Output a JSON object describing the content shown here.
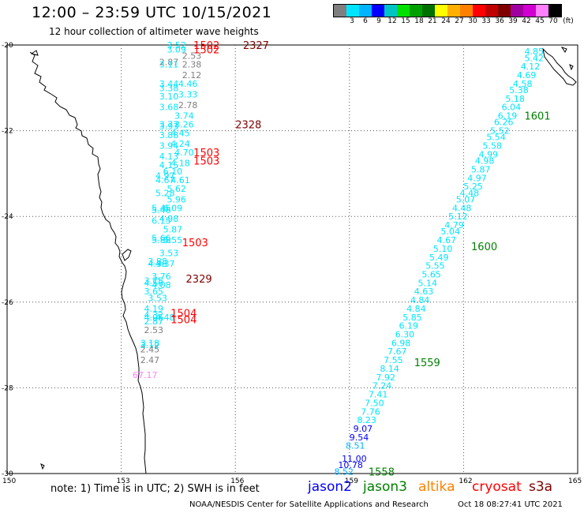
{
  "header": {
    "title": "12:00 – 23:59 UTC 10/15/2021",
    "subtitle": "12 hour collection of altimeter wave heights"
  },
  "legend": {
    "unit": "(ft)",
    "colors": [
      "#7f7f7f",
      "#00e5ff",
      "#00b4ff",
      "#0000ff",
      "#00c4c4",
      "#00e000",
      "#00a000",
      "#007000",
      "#ffff00",
      "#ffb000",
      "#ff8000",
      "#ff0000",
      "#c00000",
      "#800000",
      "#a000a0",
      "#d000d0",
      "#ff80ff",
      "#000000"
    ],
    "ticks": [
      "3",
      "6",
      "9",
      "12",
      "15",
      "18",
      "21",
      "24",
      "27",
      "30",
      "33",
      "36",
      "39",
      "42",
      "45",
      "70"
    ]
  },
  "map": {
    "lat_labels": [
      "-20",
      "-22",
      "-24",
      "-26",
      "-28",
      "-30"
    ],
    "lon_labels": [
      "150",
      "153",
      "156",
      "159",
      "162",
      "165"
    ]
  },
  "chart_data": {
    "type": "scatter",
    "x_range": [
      150,
      165
    ],
    "y_range": [
      -30,
      -20
    ],
    "grid": true,
    "units": "ft",
    "track_labels": [
      {
        "text": "2327",
        "lon": 156.2,
        "lat": -20.0,
        "color": "#800000"
      },
      {
        "text": "1502",
        "lon": 154.9,
        "lat": -20.0,
        "color": "#ff0000"
      },
      {
        "text": "1502",
        "lon": 154.9,
        "lat": -20.1,
        "color": "#ff0000"
      },
      {
        "text": "2328",
        "lon": 156.0,
        "lat": -21.85,
        "color": "#800000"
      },
      {
        "text": "1503",
        "lon": 154.9,
        "lat": -22.5,
        "color": "#ff0000"
      },
      {
        "text": "1503",
        "lon": 154.9,
        "lat": -22.7,
        "color": "#ff0000"
      },
      {
        "text": "1503",
        "lon": 154.6,
        "lat": -24.6,
        "color": "#ff0000"
      },
      {
        "text": "2329",
        "lon": 154.7,
        "lat": -25.45,
        "color": "#800000"
      },
      {
        "text": "1504",
        "lon": 154.3,
        "lat": -26.25,
        "color": "#ff0000"
      },
      {
        "text": "1504",
        "lon": 154.3,
        "lat": -26.4,
        "color": "#ff0000"
      },
      {
        "text": "1601",
        "lon": 163.6,
        "lat": -21.65,
        "color": "#008000"
      },
      {
        "text": "1600",
        "lon": 162.2,
        "lat": -24.7,
        "color": "#008000"
      },
      {
        "text": "1559",
        "lon": 160.7,
        "lat": -27.4,
        "color": "#008000"
      },
      {
        "text": "1558",
        "lon": 159.5,
        "lat": -29.95,
        "color": "#008000"
      }
    ],
    "points": [
      {
        "lon": 163.6,
        "lat": -20.15,
        "v": "4.85",
        "c": "#00e5ff"
      },
      {
        "lon": 163.6,
        "lat": -20.3,
        "v": "5.42",
        "c": "#00e5ff"
      },
      {
        "lon": 163.5,
        "lat": -20.5,
        "v": "4.12",
        "c": "#00e5ff"
      },
      {
        "lon": 163.4,
        "lat": -20.7,
        "v": "4.69",
        "c": "#00e5ff"
      },
      {
        "lon": 163.3,
        "lat": -20.9,
        "v": "4.58",
        "c": "#00e5ff"
      },
      {
        "lon": 163.2,
        "lat": -21.05,
        "v": "5.38",
        "c": "#00e5ff"
      },
      {
        "lon": 163.1,
        "lat": -21.25,
        "v": "5.18",
        "c": "#00e5ff"
      },
      {
        "lon": 163.0,
        "lat": -21.45,
        "v": "6.04",
        "c": "#00e5ff"
      },
      {
        "lon": 162.9,
        "lat": -21.65,
        "v": "6.19",
        "c": "#00e5ff"
      },
      {
        "lon": 162.8,
        "lat": -21.8,
        "v": "6.26",
        "c": "#00e5ff"
      },
      {
        "lon": 162.7,
        "lat": -22.0,
        "v": "5.52",
        "c": "#00e5ff"
      },
      {
        "lon": 162.6,
        "lat": -22.15,
        "v": "5.54",
        "c": "#00e5ff"
      },
      {
        "lon": 162.5,
        "lat": -22.35,
        "v": "5.58",
        "c": "#00e5ff"
      },
      {
        "lon": 162.4,
        "lat": -22.55,
        "v": "4.99",
        "c": "#00e5ff"
      },
      {
        "lon": 162.3,
        "lat": -22.7,
        "v": "4.98",
        "c": "#00e5ff"
      },
      {
        "lon": 162.2,
        "lat": -22.9,
        "v": "5.87",
        "c": "#00e5ff"
      },
      {
        "lon": 162.1,
        "lat": -23.1,
        "v": "4.97",
        "c": "#00e5ff"
      },
      {
        "lon": 162.0,
        "lat": -23.3,
        "v": "5.25",
        "c": "#00e5ff"
      },
      {
        "lon": 161.9,
        "lat": -23.45,
        "v": "4.48",
        "c": "#00e5ff"
      },
      {
        "lon": 161.8,
        "lat": -23.6,
        "v": "5.07",
        "c": "#00e5ff"
      },
      {
        "lon": 161.7,
        "lat": -23.8,
        "v": "4.48",
        "c": "#00e5ff"
      },
      {
        "lon": 161.6,
        "lat": -24.0,
        "v": "5.12",
        "c": "#00e5ff"
      },
      {
        "lon": 161.5,
        "lat": -24.2,
        "v": "4.79",
        "c": "#00e5ff"
      },
      {
        "lon": 161.4,
        "lat": -24.35,
        "v": "5.04",
        "c": "#00e5ff"
      },
      {
        "lon": 161.3,
        "lat": -24.55,
        "v": "4.67",
        "c": "#00e5ff"
      },
      {
        "lon": 161.2,
        "lat": -24.75,
        "v": "5.10",
        "c": "#00e5ff"
      },
      {
        "lon": 161.1,
        "lat": -24.95,
        "v": "5.49",
        "c": "#00e5ff"
      },
      {
        "lon": 161.0,
        "lat": -25.15,
        "v": "5.55",
        "c": "#00e5ff"
      },
      {
        "lon": 160.9,
        "lat": -25.35,
        "v": "5.65",
        "c": "#00e5ff"
      },
      {
        "lon": 160.8,
        "lat": -25.55,
        "v": "5.14",
        "c": "#00e5ff"
      },
      {
        "lon": 160.7,
        "lat": -25.75,
        "v": "4.63",
        "c": "#00e5ff"
      },
      {
        "lon": 160.6,
        "lat": -25.95,
        "v": "4.84",
        "c": "#00e5ff"
      },
      {
        "lon": 160.5,
        "lat": -26.15,
        "v": "4.84",
        "c": "#00e5ff"
      },
      {
        "lon": 160.4,
        "lat": -26.35,
        "v": "5.85",
        "c": "#00e5ff"
      },
      {
        "lon": 160.3,
        "lat": -26.55,
        "v": "6.19",
        "c": "#00e5ff"
      },
      {
        "lon": 160.2,
        "lat": -26.75,
        "v": "6.30",
        "c": "#00e5ff"
      },
      {
        "lon": 160.1,
        "lat": -26.95,
        "v": "6.98",
        "c": "#00e5ff"
      },
      {
        "lon": 160.0,
        "lat": -27.15,
        "v": "7.67",
        "c": "#00e5ff"
      },
      {
        "lon": 159.9,
        "lat": -27.35,
        "v": "7.55",
        "c": "#00e5ff"
      },
      {
        "lon": 159.8,
        "lat": -27.55,
        "v": "8.14",
        "c": "#00e5ff"
      },
      {
        "lon": 159.7,
        "lat": -27.75,
        "v": "7.92",
        "c": "#00e5ff"
      },
      {
        "lon": 159.6,
        "lat": -27.95,
        "v": "7.24",
        "c": "#00e5ff"
      },
      {
        "lon": 159.5,
        "lat": -28.15,
        "v": "7.41",
        "c": "#00e5ff"
      },
      {
        "lon": 159.4,
        "lat": -28.35,
        "v": "7.50",
        "c": "#00e5ff"
      },
      {
        "lon": 159.3,
        "lat": -28.55,
        "v": "7.76",
        "c": "#00e5ff"
      },
      {
        "lon": 159.2,
        "lat": -28.75,
        "v": "8.23",
        "c": "#00e5ff"
      },
      {
        "lon": 159.1,
        "lat": -28.95,
        "v": "9.07",
        "c": "#0000ff"
      },
      {
        "lon": 159.0,
        "lat": -29.15,
        "v": "9.54",
        "c": "#0000ff"
      },
      {
        "lon": 158.9,
        "lat": -29.35,
        "v": "8.51",
        "c": "#00b4ff"
      },
      {
        "lon": 158.8,
        "lat": -29.65,
        "v": "11.00",
        "c": "#0000ff"
      },
      {
        "lon": 158.7,
        "lat": -29.8,
        "v": "10.78",
        "c": "#0000ff"
      },
      {
        "lon": 158.6,
        "lat": -29.95,
        "v": "8.52",
        "c": "#00b4ff"
      },
      {
        "lon": 154.2,
        "lat": -20.0,
        "v": "3.52",
        "c": "#00e5ff"
      },
      {
        "lon": 154.2,
        "lat": -20.1,
        "v": "3.09",
        "c": "#00e5ff"
      },
      {
        "lon": 154.6,
        "lat": -20.25,
        "v": "2.53",
        "c": "#7f7f7f"
      },
      {
        "lon": 154.0,
        "lat": -20.4,
        "v": "2.87",
        "c": "#7f7f7f"
      },
      {
        "lon": 154.0,
        "lat": -20.45,
        "v": "3.11",
        "c": "#00e5ff"
      },
      {
        "lon": 154.6,
        "lat": -20.45,
        "v": "2.38",
        "c": "#7f7f7f"
      },
      {
        "lon": 154.6,
        "lat": -20.7,
        "v": "2.12",
        "c": "#7f7f7f"
      },
      {
        "lon": 154.0,
        "lat": -20.9,
        "v": "3.44",
        "c": "#00e5ff"
      },
      {
        "lon": 154.0,
        "lat": -21.0,
        "v": "3.38",
        "c": "#00e5ff"
      },
      {
        "lon": 154.5,
        "lat": -20.9,
        "v": "4.46",
        "c": "#00e5ff"
      },
      {
        "lon": 154.0,
        "lat": -21.2,
        "v": "3.10",
        "c": "#00e5ff"
      },
      {
        "lon": 154.5,
        "lat": -21.15,
        "v": "3.33",
        "c": "#00e5ff"
      },
      {
        "lon": 154.0,
        "lat": -21.45,
        "v": "3.68",
        "c": "#00e5ff"
      },
      {
        "lon": 154.5,
        "lat": -21.4,
        "v": "2.78",
        "c": "#7f7f7f"
      },
      {
        "lon": 154.4,
        "lat": -21.65,
        "v": "3.74",
        "c": "#00e5ff"
      },
      {
        "lon": 154.0,
        "lat": -21.85,
        "v": "3.77",
        "c": "#00e5ff"
      },
      {
        "lon": 154.0,
        "lat": -21.9,
        "v": "3.93",
        "c": "#00e5ff"
      },
      {
        "lon": 154.4,
        "lat": -21.85,
        "v": "3.26",
        "c": "#00e5ff"
      },
      {
        "lon": 154.0,
        "lat": -22.1,
        "v": "3.88",
        "c": "#00e5ff"
      },
      {
        "lon": 154.3,
        "lat": -22.05,
        "v": "4.45",
        "c": "#00e5ff"
      },
      {
        "lon": 154.0,
        "lat": -22.35,
        "v": "3.94",
        "c": "#00e5ff"
      },
      {
        "lon": 154.3,
        "lat": -22.3,
        "v": "4.24",
        "c": "#00e5ff"
      },
      {
        "lon": 154.4,
        "lat": -22.5,
        "v": "4.70",
        "c": "#00e5ff"
      },
      {
        "lon": 154.0,
        "lat": -22.6,
        "v": "4.13",
        "c": "#00e5ff"
      },
      {
        "lon": 154.0,
        "lat": -22.8,
        "v": "4.15",
        "c": "#00e5ff"
      },
      {
        "lon": 154.3,
        "lat": -22.75,
        "v": "4.18",
        "c": "#00e5ff"
      },
      {
        "lon": 154.1,
        "lat": -22.95,
        "v": "6.10",
        "c": "#00e5ff"
      },
      {
        "lon": 153.9,
        "lat": -23.05,
        "v": "4.97",
        "c": "#00e5ff"
      },
      {
        "lon": 153.9,
        "lat": -23.15,
        "v": "4.67",
        "c": "#00e5ff"
      },
      {
        "lon": 154.3,
        "lat": -23.15,
        "v": "4.61",
        "c": "#00e5ff"
      },
      {
        "lon": 154.2,
        "lat": -23.35,
        "v": "5.62",
        "c": "#00e5ff"
      },
      {
        "lon": 153.9,
        "lat": -23.45,
        "v": "5.28",
        "c": "#00e5ff"
      },
      {
        "lon": 154.2,
        "lat": -23.6,
        "v": "5.96",
        "c": "#00e5ff"
      },
      {
        "lon": 153.8,
        "lat": -23.8,
        "v": "5.45",
        "c": "#00e5ff"
      },
      {
        "lon": 153.8,
        "lat": -23.85,
        "v": "5.46",
        "c": "#00e5ff"
      },
      {
        "lon": 154.1,
        "lat": -23.8,
        "v": "6.09",
        "c": "#00e5ff"
      },
      {
        "lon": 153.8,
        "lat": -24.1,
        "v": "6.15",
        "c": "#00e5ff"
      },
      {
        "lon": 154.0,
        "lat": -24.05,
        "v": "4.98",
        "c": "#00e5ff"
      },
      {
        "lon": 154.1,
        "lat": -24.3,
        "v": "5.87",
        "c": "#00e5ff"
      },
      {
        "lon": 153.8,
        "lat": -24.5,
        "v": "5.66",
        "c": "#00e5ff"
      },
      {
        "lon": 153.8,
        "lat": -24.55,
        "v": "5.88",
        "c": "#00e5ff"
      },
      {
        "lon": 154.1,
        "lat": -24.55,
        "v": "5.55",
        "c": "#00e5ff"
      },
      {
        "lon": 154.0,
        "lat": -24.85,
        "v": "3.53",
        "c": "#00e5ff"
      },
      {
        "lon": 153.7,
        "lat": -25.05,
        "v": "3.88",
        "c": "#00e5ff"
      },
      {
        "lon": 153.7,
        "lat": -25.1,
        "v": "4.36",
        "c": "#00e5ff"
      },
      {
        "lon": 153.9,
        "lat": -25.1,
        "v": "4.37",
        "c": "#00e5ff"
      },
      {
        "lon": 153.8,
        "lat": -25.4,
        "v": "3.76",
        "c": "#00e5ff"
      },
      {
        "lon": 153.6,
        "lat": -25.5,
        "v": "3.75",
        "c": "#00e5ff"
      },
      {
        "lon": 153.6,
        "lat": -25.55,
        "v": "4.56",
        "c": "#00e5ff"
      },
      {
        "lon": 153.8,
        "lat": -25.6,
        "v": "4.08",
        "c": "#00e5ff"
      },
      {
        "lon": 153.6,
        "lat": -25.75,
        "v": "3.65",
        "c": "#00e5ff"
      },
      {
        "lon": 153.7,
        "lat": -25.9,
        "v": "3.53",
        "c": "#00e5ff"
      },
      {
        "lon": 153.6,
        "lat": -26.15,
        "v": "4.19",
        "c": "#00e5ff"
      },
      {
        "lon": 153.6,
        "lat": -26.3,
        "v": "4.32",
        "c": "#00e5ff"
      },
      {
        "lon": 153.6,
        "lat": -26.35,
        "v": "4.06",
        "c": "#00e5ff"
      },
      {
        "lon": 153.6,
        "lat": -26.45,
        "v": "2.87",
        "c": "#00e5ff"
      },
      {
        "lon": 153.9,
        "lat": -26.35,
        "v": "4.48",
        "c": "#00e5ff"
      },
      {
        "lon": 153.6,
        "lat": -26.65,
        "v": "2.53",
        "c": "#7f7f7f"
      },
      {
        "lon": 153.5,
        "lat": -26.95,
        "v": "3.18",
        "c": "#00e5ff"
      },
      {
        "lon": 153.5,
        "lat": -27.0,
        "v": "3.12",
        "c": "#00e5ff"
      },
      {
        "lon": 153.5,
        "lat": -27.1,
        "v": "2.45",
        "c": "#7f7f7f"
      },
      {
        "lon": 153.5,
        "lat": -27.35,
        "v": "2.47",
        "c": "#7f7f7f"
      },
      {
        "lon": 153.3,
        "lat": -27.7,
        "v": "67.17",
        "c": "#ff80ff"
      }
    ]
  },
  "footer": {
    "note": "note: 1) Time is in UTC; 2) SWH is in feet",
    "satellites": [
      {
        "name": "jason2",
        "color": "#0000ff"
      },
      {
        "name": "jason3",
        "color": "#008000"
      },
      {
        "name": "altika",
        "color": "#ff8000"
      },
      {
        "name": "cryosat",
        "color": "#ff0000"
      },
      {
        "name": "s3a",
        "color": "#800000"
      }
    ],
    "credit": "NOAA/NESDIS Center for Satellite Applications and Research",
    "timestamp": "Oct 18 08:27:41 UTC 2021"
  }
}
